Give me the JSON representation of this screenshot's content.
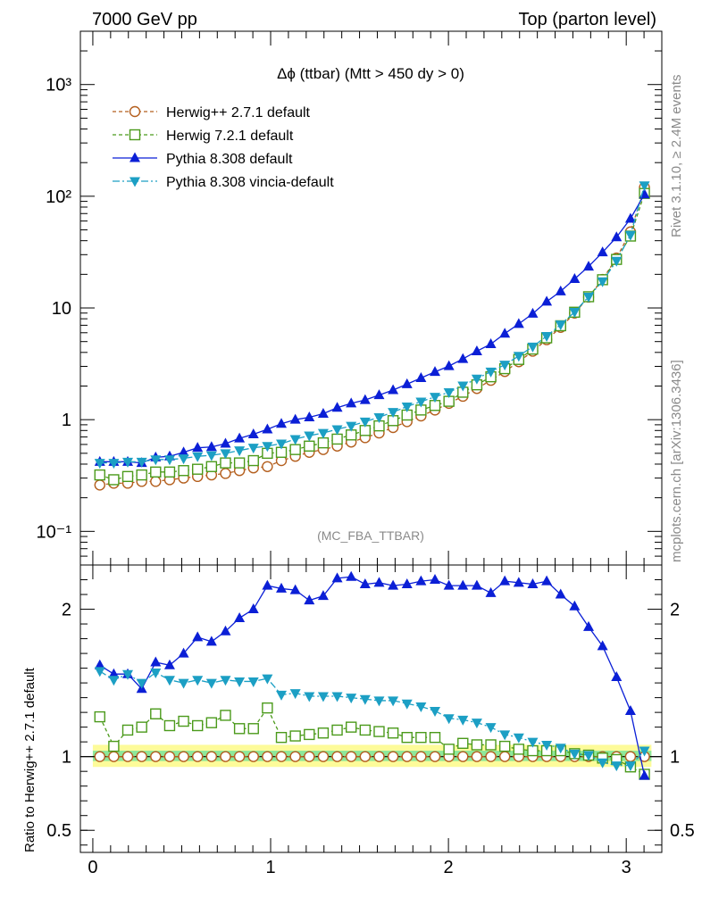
{
  "header": {
    "left": "7000 GeV pp",
    "right": "Top (parton level)"
  },
  "side_text": {
    "rivet": "Rivet 3.1.10, ≥ 2.4M events",
    "source": "mcplots.cern.ch [arXiv:1306.3436]"
  },
  "chart_data": {
    "type": "line",
    "title": "Δϕ (ttbar) (Mtt > 450 dy > 0)",
    "watermark": "(MC_FBA_TTBAR)",
    "xlim": [
      -0.07,
      3.2
    ],
    "x_ticks": [
      0,
      1,
      2,
      3
    ],
    "x_tick_labels": [
      "0",
      "1",
      "2",
      "3"
    ],
    "main": {
      "yscale": "log",
      "ylim": [
        0.05,
        3000
      ],
      "y_ticks": [
        0.1,
        1,
        10,
        100,
        1000
      ],
      "y_tick_labels": [
        "10⁻¹",
        "1",
        "10",
        "10²",
        "10³"
      ]
    },
    "ratio": {
      "ylabel": "Ratio to Herwig++ 2.7.1 default",
      "ylim": [
        0.35,
        2.3
      ],
      "y_ticks": [
        0.5,
        1,
        2
      ],
      "y_tick_labels": [
        "0.5",
        "1",
        "2"
      ],
      "band_outer": [
        0.93,
        1.08
      ],
      "band_inner": [
        0.97,
        1.04
      ]
    },
    "x": [
      0.0393,
      0.1178,
      0.1963,
      0.2749,
      0.3534,
      0.432,
      0.5105,
      0.589,
      0.6676,
      0.7461,
      0.8247,
      0.9032,
      0.9817,
      1.0603,
      1.1388,
      1.2174,
      1.2959,
      1.3744,
      1.453,
      1.5315,
      1.6101,
      1.6886,
      1.7671,
      1.8457,
      1.9242,
      2.0028,
      2.0813,
      2.1598,
      2.2384,
      2.3169,
      2.3955,
      2.474,
      2.5525,
      2.6311,
      2.7096,
      2.7882,
      2.8667,
      2.9452,
      3.0238,
      3.1023
    ],
    "series": [
      {
        "name": "Herwig++ 2.7.1 default",
        "color": "#b45f1e",
        "marker": "circle-open",
        "dash": "4,3",
        "values": [
          0.26,
          0.27,
          0.27,
          0.28,
          0.28,
          0.29,
          0.3,
          0.31,
          0.32,
          0.33,
          0.35,
          0.37,
          0.38,
          0.43,
          0.47,
          0.51,
          0.54,
          0.58,
          0.63,
          0.69,
          0.76,
          0.85,
          0.96,
          1.08,
          1.22,
          1.4,
          1.62,
          1.9,
          2.25,
          2.7,
          3.3,
          4.1,
          5.2,
          6.7,
          9.0,
          12.5,
          18.0,
          28.0,
          48.0,
          120.0
        ],
        "ratio": [
          1.0,
          1.0,
          1.0,
          1.0,
          1.0,
          1.0,
          1.0,
          1.0,
          1.0,
          1.0,
          1.0,
          1.0,
          1.0,
          1.0,
          1.0,
          1.0,
          1.0,
          1.0,
          1.0,
          1.0,
          1.0,
          1.0,
          1.0,
          1.0,
          1.0,
          1.0,
          1.0,
          1.0,
          1.0,
          1.0,
          1.0,
          1.0,
          1.0,
          1.0,
          1.0,
          1.0,
          1.0,
          1.0,
          1.0,
          1.0
        ]
      },
      {
        "name": "Herwig 7.2.1 default",
        "color": "#4b9a1b",
        "marker": "square-open",
        "dash": "4,3",
        "values": [
          0.32,
          0.29,
          0.31,
          0.32,
          0.34,
          0.34,
          0.35,
          0.36,
          0.38,
          0.41,
          0.41,
          0.43,
          0.5,
          0.51,
          0.54,
          0.58,
          0.62,
          0.67,
          0.73,
          0.8,
          0.88,
          0.98,
          1.1,
          1.22,
          1.34,
          1.46,
          1.76,
          2.05,
          2.42,
          2.86,
          3.46,
          4.28,
          5.4,
          6.93,
          9.16,
          12.6,
          17.9,
          27.2,
          44.0,
          106.0
        ],
        "ratio": [
          1.27,
          1.07,
          1.18,
          1.2,
          1.29,
          1.21,
          1.24,
          1.21,
          1.23,
          1.28,
          1.19,
          1.19,
          1.33,
          1.13,
          1.14,
          1.15,
          1.16,
          1.18,
          1.2,
          1.18,
          1.17,
          1.16,
          1.13,
          1.13,
          1.13,
          1.05,
          1.09,
          1.08,
          1.08,
          1.07,
          1.05,
          1.04,
          1.04,
          1.04,
          1.02,
          1.01,
          0.99,
          0.98,
          0.93,
          0.88
        ]
      },
      {
        "name": "Pythia 8.308 default",
        "color": "#0b1fd6",
        "marker": "triangle-up",
        "dash": "",
        "values": [
          0.42,
          0.42,
          0.42,
          0.41,
          0.46,
          0.47,
          0.51,
          0.56,
          0.57,
          0.61,
          0.68,
          0.74,
          0.82,
          0.92,
          1.0,
          1.05,
          1.13,
          1.28,
          1.4,
          1.5,
          1.66,
          1.84,
          2.08,
          2.36,
          2.68,
          3.02,
          3.5,
          4.1,
          4.75,
          5.9,
          7.2,
          8.9,
          11.4,
          14.1,
          18.2,
          23.5,
          31.5,
          43.0,
          63.0,
          104.0
        ],
        "ratio": [
          1.62,
          1.56,
          1.56,
          1.46,
          1.64,
          1.62,
          1.7,
          1.81,
          1.78,
          1.85,
          1.94,
          2.0,
          2.16,
          2.14,
          2.13,
          2.06,
          2.09,
          2.21,
          2.22,
          2.17,
          2.18,
          2.16,
          2.17,
          2.19,
          2.2,
          2.16,
          2.16,
          2.16,
          2.11,
          2.19,
          2.18,
          2.17,
          2.19,
          2.1,
          2.02,
          1.88,
          1.75,
          1.54,
          1.31,
          0.87
        ]
      },
      {
        "name": "Pythia 8.308 vincia-default",
        "color": "#1c9fc4",
        "marker": "triangle-down",
        "dash": "8,3,2,3",
        "values": [
          0.41,
          0.41,
          0.42,
          0.42,
          0.44,
          0.44,
          0.45,
          0.47,
          0.48,
          0.5,
          0.53,
          0.56,
          0.58,
          0.61,
          0.67,
          0.72,
          0.76,
          0.82,
          0.88,
          0.96,
          1.05,
          1.17,
          1.31,
          1.45,
          1.6,
          1.76,
          2.02,
          2.33,
          2.69,
          3.1,
          3.72,
          4.5,
          5.6,
          7.1,
          9.2,
          12.6,
          17.3,
          26.4,
          45.0,
          125.0
        ],
        "ratio": [
          1.58,
          1.52,
          1.56,
          1.5,
          1.57,
          1.52,
          1.5,
          1.52,
          1.5,
          1.52,
          1.51,
          1.51,
          1.53,
          1.42,
          1.43,
          1.41,
          1.41,
          1.41,
          1.4,
          1.39,
          1.38,
          1.38,
          1.36,
          1.34,
          1.31,
          1.26,
          1.25,
          1.23,
          1.2,
          1.15,
          1.13,
          1.1,
          1.08,
          1.06,
          1.02,
          1.01,
          0.96,
          0.94,
          0.94,
          1.04
        ]
      }
    ]
  }
}
